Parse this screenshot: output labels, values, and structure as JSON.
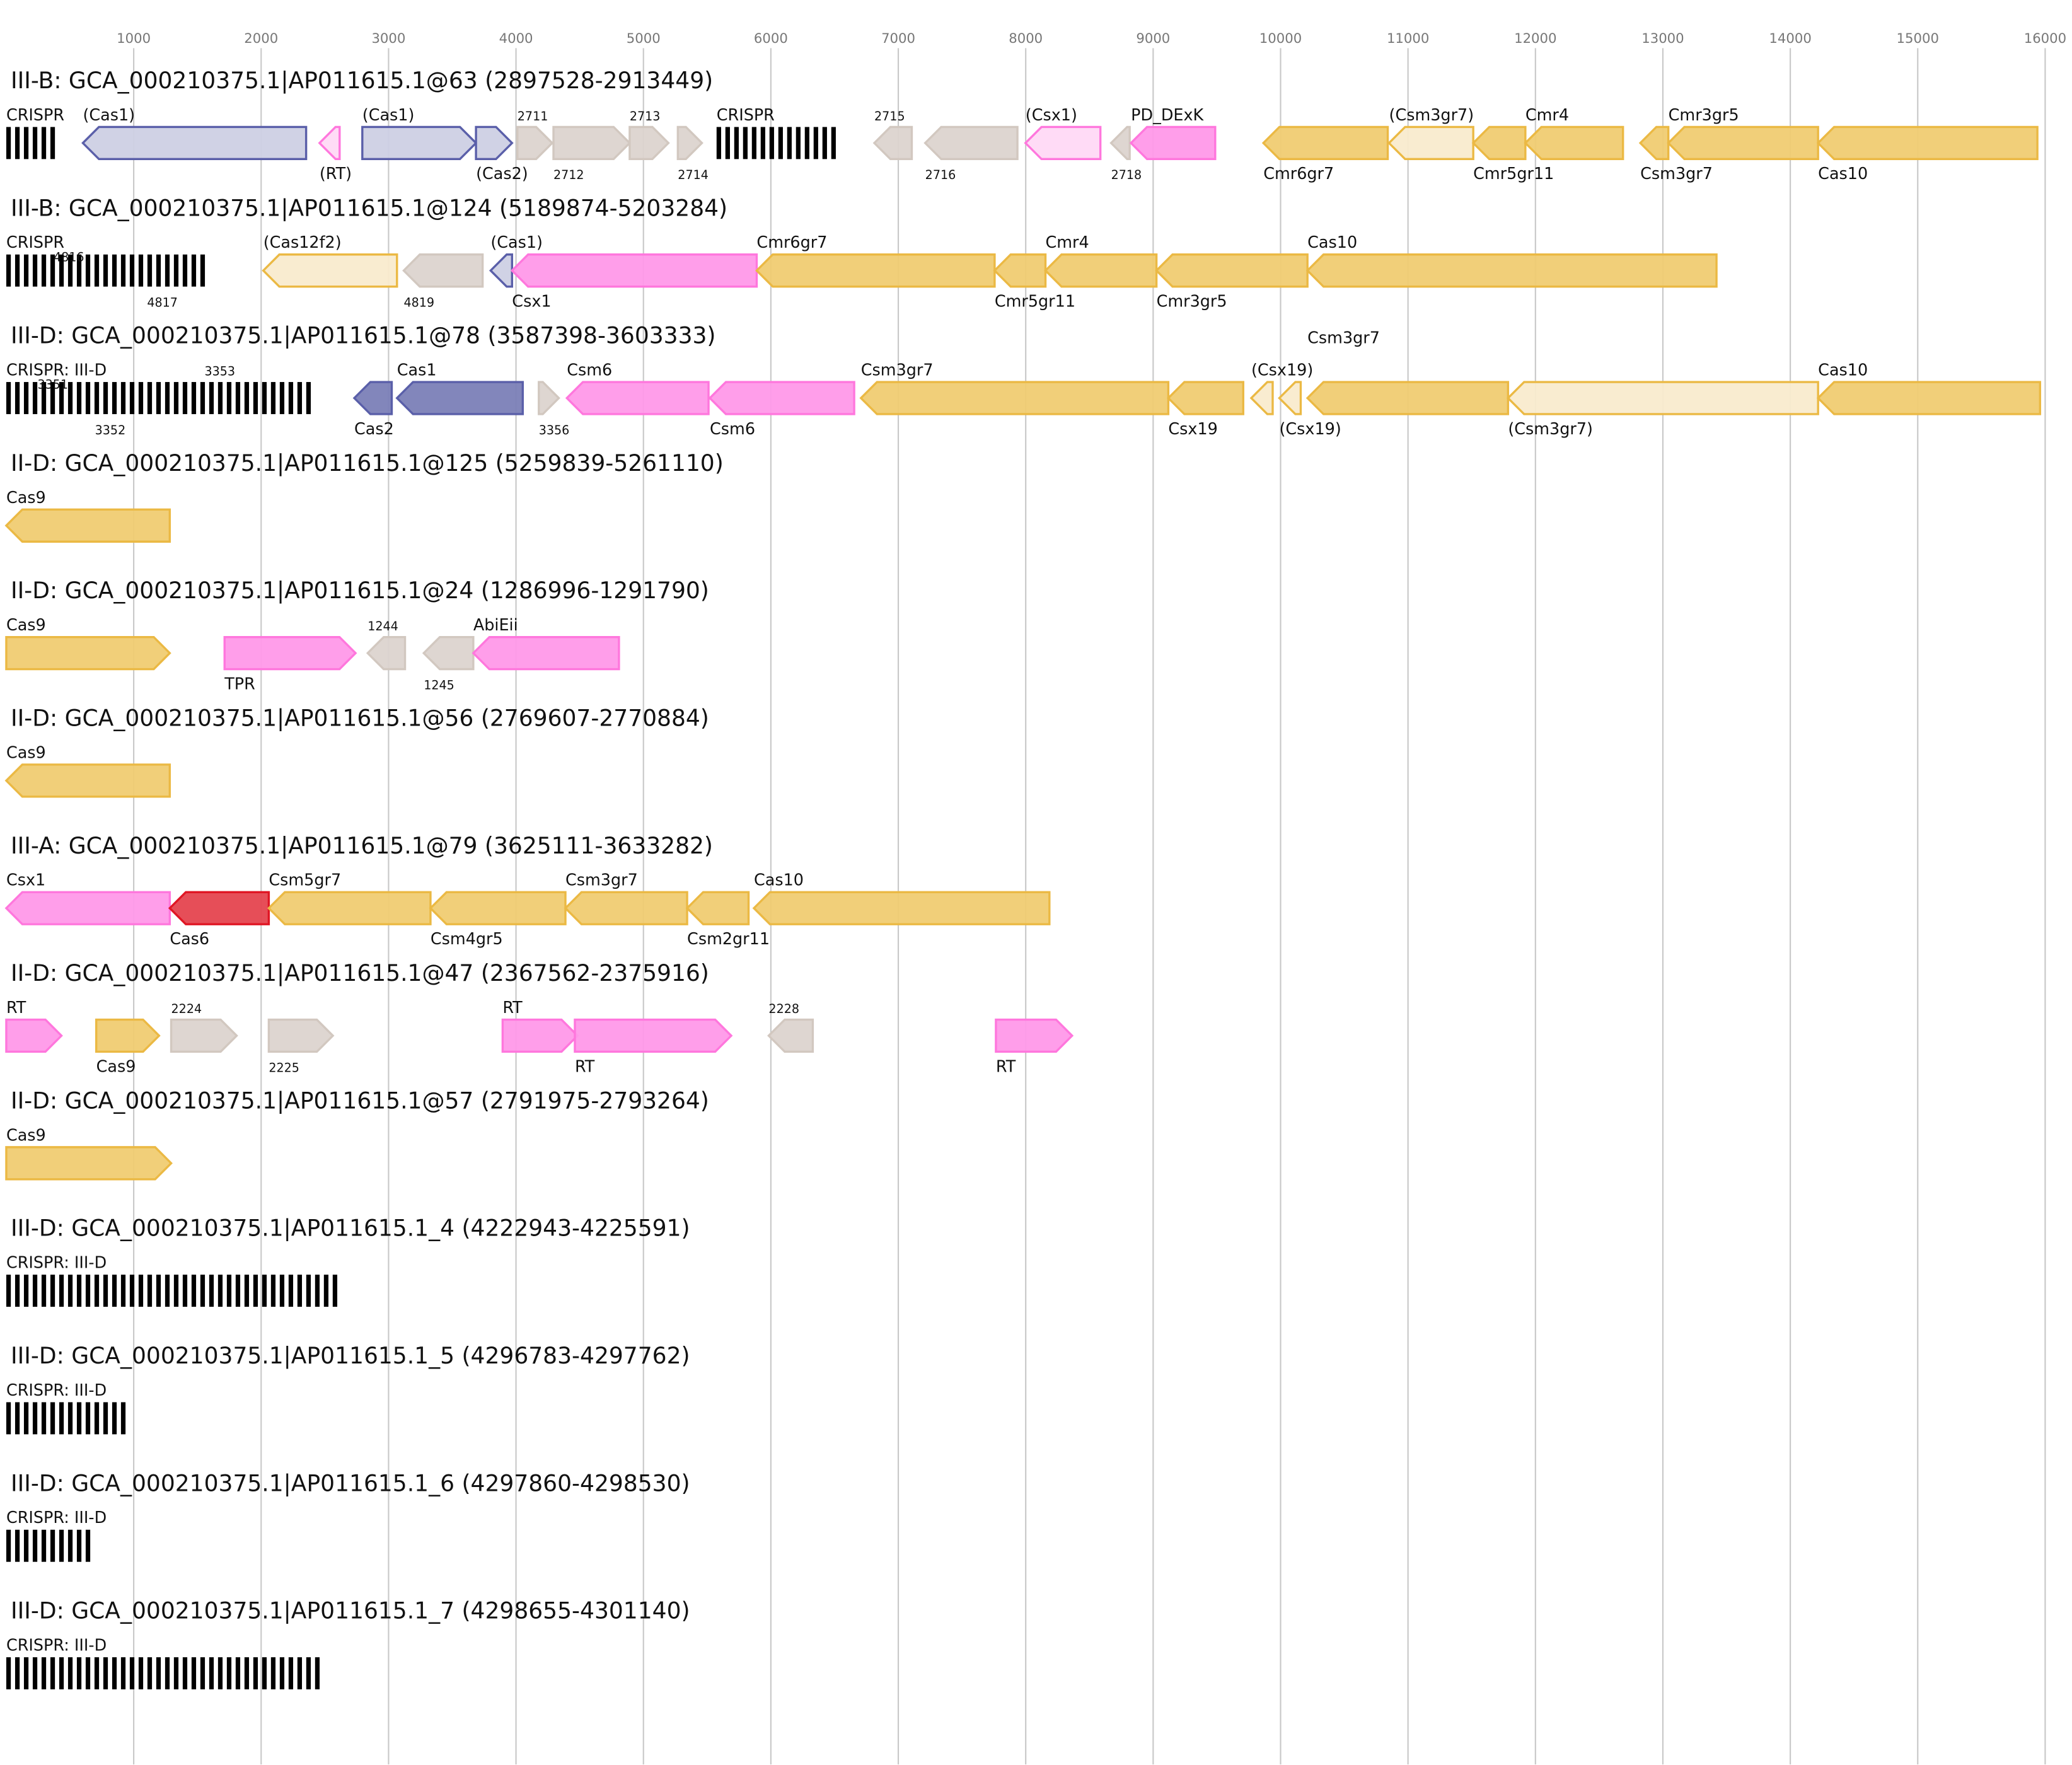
{
  "axis": {
    "ticks": [
      1000,
      2000,
      3000,
      4000,
      5000,
      6000,
      7000,
      8000,
      9000,
      10000,
      11000,
      12000,
      13000,
      14000,
      15000,
      16000
    ],
    "min": 0,
    "max": 16000
  },
  "colors": {
    "gold": {
      "fill": "#f0cc72",
      "stroke": "#ebb944"
    },
    "gold-light": {
      "fill": "#f9ebcd",
      "stroke": "#ebb944"
    },
    "pink": {
      "fill": "#ff99e9",
      "stroke": "#ff77dd"
    },
    "pink-light": {
      "fill": "#ffd9f6",
      "stroke": "#ff77dd"
    },
    "lavender-light": {
      "fill": "#cdd0e4",
      "stroke": "#5a5fa9"
    },
    "lavender": {
      "fill": "#7b7fb7",
      "stroke": "#5a5fa9"
    },
    "gray": {
      "fill": "#dcd4cf",
      "stroke": "#d2c8c0"
    },
    "red": {
      "fill": "#e5444f",
      "stroke": "#e01624"
    }
  },
  "loci": [
    {
      "title": "III-B: GCA_000210375.1|AP011615.1@63 (2897528-2913449)",
      "genes": [
        {
          "s": 0,
          "e": 402,
          "type": "crispr",
          "label": "CRISPR",
          "pos": "above"
        },
        {
          "s": 601,
          "e": 2353,
          "dir": "-",
          "c": "lavender-light",
          "label": "(Cas1)",
          "pos": "above"
        },
        {
          "s": 2458,
          "e": 2616,
          "dir": "-",
          "c": "pink-light",
          "label": "(RT)",
          "pos": "below"
        },
        {
          "s": 2794,
          "e": 3686,
          "dir": "+",
          "c": "lavender-light",
          "label": "(Cas1)",
          "pos": "above"
        },
        {
          "s": 3686,
          "e": 3969,
          "dir": "+",
          "c": "lavender-light",
          "label": "(Cas2)",
          "pos": "below"
        },
        {
          "s": 4011,
          "e": 4284,
          "dir": "+",
          "c": "gray",
          "label": "2711",
          "pos": "above",
          "small": true
        },
        {
          "s": 4294,
          "e": 4892,
          "dir": "+",
          "c": "gray",
          "label": "2712",
          "pos": "below",
          "small": true
        },
        {
          "s": 4892,
          "e": 5196,
          "dir": "+",
          "c": "gray",
          "label": "2713",
          "pos": "above",
          "small": true
        },
        {
          "s": 5270,
          "e": 5459,
          "dir": "+",
          "c": "gray",
          "label": "2714",
          "pos": "below",
          "small": true
        },
        {
          "s": 5574,
          "e": 6560,
          "type": "crispr",
          "label": "CRISPR",
          "pos": "above"
        },
        {
          "s": 6812,
          "e": 7106,
          "dir": "-",
          "c": "gray",
          "label": "2715",
          "pos": "above",
          "small": true
        },
        {
          "s": 7211,
          "e": 7935,
          "dir": "-",
          "c": "gray",
          "label": "2716",
          "pos": "below",
          "small": true
        },
        {
          "s": 7998,
          "e": 8586,
          "dir": "-",
          "c": "pink-light",
          "label": "(Csx1)",
          "pos": "above"
        },
        {
          "s": 8670,
          "e": 8816,
          "dir": "-",
          "c": "gray",
          "label": "2718",
          "pos": "below",
          "small": true
        },
        {
          "s": 8826,
          "e": 9487,
          "dir": "-",
          "c": "pink",
          "label": "PD_DExK",
          "pos": "above"
        },
        {
          "s": 9865,
          "e": 10841,
          "dir": "-",
          "c": "gold",
          "label": "Cmr6gr7",
          "pos": "below"
        },
        {
          "s": 10851,
          "e": 11512,
          "dir": "-",
          "c": "gold-light",
          "label": "(Csm3gr7)",
          "pos": "above"
        },
        {
          "s": 11512,
          "e": 11921,
          "dir": "-",
          "c": "gold",
          "label": "Cmr5gr11",
          "pos": "below"
        },
        {
          "s": 11921,
          "e": 12687,
          "dir": "-",
          "c": "gold",
          "label": "Cmr4",
          "pos": "above"
        },
        {
          "s": 12823,
          "e": 13043,
          "dir": "-",
          "c": "gold",
          "label": "Csm3gr7",
          "pos": "below"
        },
        {
          "s": 13043,
          "e": 14218,
          "dir": "-",
          "c": "gold",
          "label": "Cmr3gr5",
          "pos": "above"
        },
        {
          "s": 14218,
          "e": 15939,
          "dir": "-",
          "c": "gold",
          "label": "Cas10",
          "pos": "below"
        }
      ]
    },
    {
      "title": "III-B: GCA_000210375.1|AP011615.1@124 (5189874-5203284)",
      "genes": [
        {
          "s": 0,
          "e": 1587,
          "type": "crispr",
          "label": "CRISPR",
          "pos": "above"
        },
        {
          "s": 371,
          "e": 371,
          "type": "marker",
          "label": "4816",
          "pos": "above",
          "small": true
        },
        {
          "s": 1105,
          "e": 1105,
          "type": "marker",
          "label": "4817",
          "pos": "below",
          "small": true
        },
        {
          "s": 2017,
          "e": 3066,
          "dir": "-",
          "c": "gold-light",
          "label": "(Cas12f2)",
          "pos": "above"
        },
        {
          "s": 3119,
          "e": 3738,
          "dir": "-",
          "c": "gray",
          "label": "4819",
          "pos": "below",
          "small": true
        },
        {
          "s": 3801,
          "e": 3969,
          "dir": "-",
          "c": "lavender-light",
          "label": "(Cas1)",
          "pos": "above"
        },
        {
          "s": 3969,
          "e": 5889,
          "dir": "-",
          "c": "pink",
          "label": "Csx1",
          "pos": "below"
        },
        {
          "s": 5889,
          "e": 7756,
          "dir": "-",
          "c": "gold",
          "label": "Cmr6gr7",
          "pos": "above"
        },
        {
          "s": 7756,
          "e": 8155,
          "dir": "-",
          "c": "gold",
          "label": "Cmr5gr11",
          "pos": "below"
        },
        {
          "s": 8155,
          "e": 9026,
          "dir": "-",
          "c": "gold",
          "label": "Cmr4",
          "pos": "above"
        },
        {
          "s": 9026,
          "e": 10211,
          "dir": "-",
          "c": "gold",
          "label": "Cmr3gr5",
          "pos": "below"
        },
        {
          "s": 10211,
          "e": 13421,
          "dir": "-",
          "c": "gold",
          "label": "Cas10",
          "pos": "above"
        }
      ]
    },
    {
      "title": "III-D: GCA_000210375.1|AP011615.1@78 (3587398-3603333)",
      "genes": [
        {
          "s": 0,
          "e": 2406,
          "type": "crispr",
          "label": "CRISPR: III-D",
          "pos": "above"
        },
        {
          "s": 245,
          "e": 245,
          "type": "marker",
          "label": "3351",
          "pos": "above",
          "small": true
        },
        {
          "s": 1556,
          "e": 1556,
          "type": "marker",
          "label": "3353",
          "pos": "above",
          "small": true
        },
        {
          "s": 696,
          "e": 696,
          "type": "marker",
          "label": "3352",
          "pos": "below",
          "small": true
        },
        {
          "s": 2731,
          "e": 3025,
          "dir": "-",
          "c": "lavender",
          "label": "Cas2",
          "pos": "below"
        },
        {
          "s": 3066,
          "e": 4053,
          "dir": "-",
          "c": "lavender",
          "label": "Cas1",
          "pos": "above"
        },
        {
          "s": 4179,
          "e": 4336,
          "dir": "+",
          "c": "gray",
          "label": "3356",
          "pos": "below",
          "small": true
        },
        {
          "s": 4399,
          "e": 5511,
          "dir": "-",
          "c": "pink",
          "label": "Csm6",
          "pos": "above"
        },
        {
          "s": 5521,
          "e": 6654,
          "dir": "-",
          "c": "pink",
          "label": "Csm6",
          "pos": "below"
        },
        {
          "s": 6707,
          "e": 9119,
          "dir": "-",
          "c": "gold",
          "label": "Csm3gr7",
          "pos": "above"
        },
        {
          "s": 9119,
          "e": 9707,
          "dir": "-",
          "c": "gold",
          "label": "Csx19",
          "pos": "below"
        },
        {
          "s": 9770,
          "e": 9938,
          "dir": "-",
          "c": "gold-light",
          "label": "(Csx19)",
          "pos": "above"
        },
        {
          "s": 9990,
          "e": 10158,
          "dir": "-",
          "c": "gold-light",
          "label": "(Csx19)",
          "pos": "below"
        },
        {
          "s": 10211,
          "e": 11785,
          "dir": "-",
          "c": "gold",
          "label": "Csm3gr7",
          "pos": "above"
        },
        {
          "s": 11785,
          "e": 14218,
          "dir": "-",
          "c": "gold-light",
          "label": "(Csm3gr7)",
          "pos": "below"
        },
        {
          "s": 14218,
          "e": 15960,
          "dir": "-",
          "c": "gold",
          "label": "Cas10",
          "pos": "above"
        }
      ]
    },
    {
      "title": "II-D: GCA_000210375.1|AP011615.1@125 (5259839-5261110)",
      "genes": [
        {
          "s": 0,
          "e": 1283,
          "dir": "-",
          "c": "gold",
          "label": "Cas9",
          "pos": "above"
        }
      ]
    },
    {
      "title": "II-D: GCA_000210375.1|AP011615.1@24 (1286996-1291790)",
      "genes": [
        {
          "s": 0,
          "e": 1283,
          "dir": "+",
          "c": "gold",
          "label": "Cas9",
          "pos": "above"
        },
        {
          "s": 1713,
          "e": 2741,
          "dir": "+",
          "c": "pink",
          "label": "TPR",
          "pos": "below"
        },
        {
          "s": 2836,
          "e": 3129,
          "dir": "-",
          "c": "gray",
          "label": "1244",
          "pos": "above",
          "small": true
        },
        {
          "s": 3276,
          "e": 3665,
          "dir": "-",
          "c": "gray",
          "label": "1245",
          "pos": "below",
          "small": true
        },
        {
          "s": 3665,
          "e": 4808,
          "dir": "-",
          "c": "pink",
          "label": "AbiEii",
          "pos": "above"
        }
      ]
    },
    {
      "title": "II-D: GCA_000210375.1|AP011615.1@56 (2769607-2770884)",
      "genes": [
        {
          "s": 0,
          "e": 1283,
          "dir": "-",
          "c": "gold",
          "label": "Cas9",
          "pos": "above"
        }
      ]
    },
    {
      "title": "III-A: GCA_000210375.1|AP011615.1@79 (3625111-3633282)",
      "genes": [
        {
          "s": 0,
          "e": 1283,
          "dir": "-",
          "c": "pink",
          "label": "Csx1",
          "pos": "above"
        },
        {
          "s": 1283,
          "e": 2060,
          "dir": "-",
          "c": "red",
          "label": "Cas6",
          "pos": "below"
        },
        {
          "s": 2060,
          "e": 3329,
          "dir": "-",
          "c": "gold",
          "label": "Csm5gr7",
          "pos": "above"
        },
        {
          "s": 3329,
          "e": 4388,
          "dir": "-",
          "c": "gold",
          "label": "Csm4gr5",
          "pos": "below"
        },
        {
          "s": 4388,
          "e": 5343,
          "dir": "-",
          "c": "gold",
          "label": "Csm3gr7",
          "pos": "above"
        },
        {
          "s": 5343,
          "e": 5825,
          "dir": "-",
          "c": "gold",
          "label": "Csm2gr11",
          "pos": "below"
        },
        {
          "s": 5867,
          "e": 8186,
          "dir": "-",
          "c": "gold",
          "label": "Cas10",
          "pos": "above"
        }
      ]
    },
    {
      "title": "II-D: GCA_000210375.1|AP011615.1@47 (2367562-2375916)",
      "genes": [
        {
          "s": 0,
          "e": 433,
          "dir": "+",
          "c": "pink",
          "label": "RT",
          "pos": "above"
        },
        {
          "s": 706,
          "e": 1199,
          "dir": "+",
          "c": "gold",
          "label": "Cas9",
          "pos": "below"
        },
        {
          "s": 1294,
          "e": 1808,
          "dir": "+",
          "c": "gray",
          "label": "2224",
          "pos": "above",
          "small": true
        },
        {
          "s": 2060,
          "e": 2563,
          "dir": "+",
          "c": "gray",
          "label": "2225",
          "pos": "below",
          "small": true
        },
        {
          "s": 3895,
          "e": 4483,
          "dir": "+",
          "c": "pink",
          "label": "RT",
          "pos": "above"
        },
        {
          "s": 4462,
          "e": 5689,
          "dir": "+",
          "c": "pink",
          "label": "RT",
          "pos": "below"
        },
        {
          "s": 5983,
          "e": 6329,
          "dir": "-",
          "c": "gray",
          "label": "2228",
          "pos": "above",
          "small": true
        },
        {
          "s": 7766,
          "e": 8364,
          "dir": "+",
          "c": "pink",
          "label": "RT",
          "pos": "below"
        }
      ]
    },
    {
      "title": "II-D: GCA_000210375.1|AP011615.1@57 (2791975-2793264)",
      "genes": [
        {
          "s": 0,
          "e": 1294,
          "dir": "+",
          "c": "gold",
          "label": "Cas9",
          "pos": "above"
        }
      ]
    },
    {
      "title": "III-D: GCA_000210375.1|AP011615.1_4 (4222943-4225591)",
      "genes": [
        {
          "s": 0,
          "e": 2658,
          "type": "crispr",
          "label": "CRISPR: III-D",
          "pos": "above"
        }
      ]
    },
    {
      "title": "III-D: GCA_000210375.1|AP011615.1_5 (4296783-4297762)",
      "genes": [
        {
          "s": 0,
          "e": 989,
          "type": "crispr",
          "label": "CRISPR: III-D",
          "pos": "above"
        }
      ]
    },
    {
      "title": "III-D: GCA_000210375.1|AP011615.1_6 (4297860-4298530)",
      "genes": [
        {
          "s": 0,
          "e": 685,
          "type": "crispr",
          "label": "CRISPR: III-D",
          "pos": "above"
        }
      ]
    },
    {
      "title": "III-D: GCA_000210375.1|AP011615.1_7 (4298655-4301140)",
      "genes": [
        {
          "s": 0,
          "e": 2489,
          "type": "crispr",
          "label": "CRISPR: III-D",
          "pos": "above"
        }
      ]
    }
  ]
}
